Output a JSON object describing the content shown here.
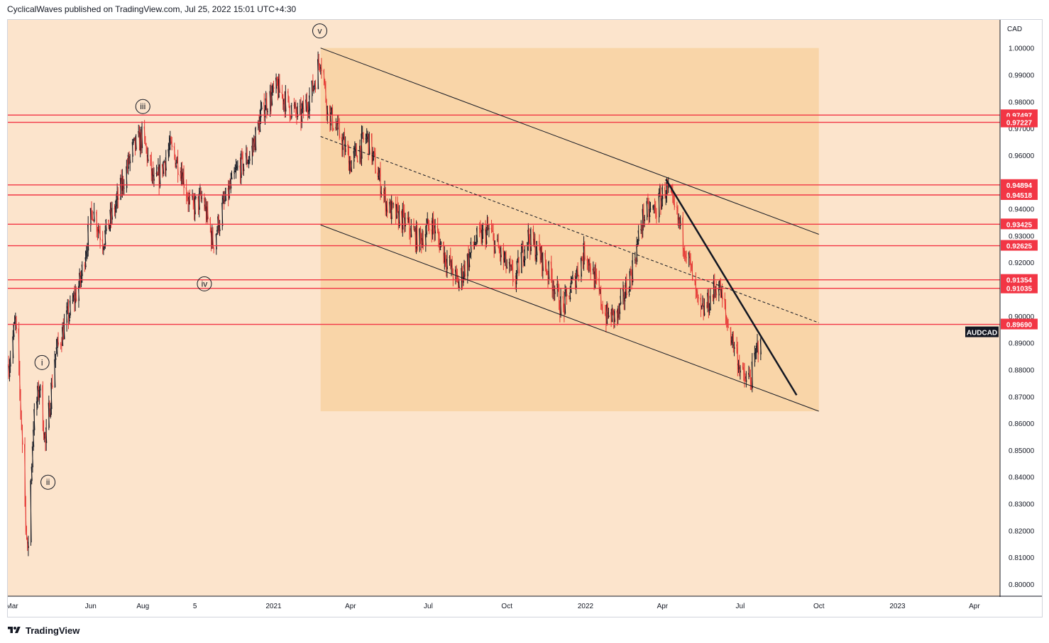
{
  "header": {
    "text": "CyclicalWaves published on TradingView.com, Jul 25, 2022 15:01 UTC+4:30"
  },
  "footer": {
    "brand": "TradingView",
    "logo_icon": "tradingview-logo-icon"
  },
  "colors": {
    "background": "#fce4cc",
    "channel_fill": "#f9d5a8",
    "up_candle": "#131722",
    "down_candle": "#e53935",
    "level_line": "#f23645",
    "level_label_bg": "#f23645",
    "trendline": "#131722",
    "symbol_tag_bg": "#131722"
  },
  "chart_data": {
    "type": "candlestick",
    "symbol": "AUDCAD",
    "currency": "CAD",
    "last_price": 0.8969,
    "y_axis": {
      "ylim": [
        0.7955,
        1.0105
      ],
      "ticks": [
        1.0,
        0.99,
        0.98,
        0.97,
        0.96,
        0.95,
        0.94,
        0.93,
        0.92,
        0.91,
        0.9,
        0.89,
        0.88,
        0.87,
        0.86,
        0.85,
        0.84,
        0.83,
        0.82,
        0.81,
        0.8
      ],
      "tick_labels": [
        "1.00000",
        "0.99000",
        "0.98000",
        "0.97000",
        "0.96000",
        "0.95000",
        "0.94000",
        "0.93000",
        "0.92000",
        "0.91000",
        "0.90000",
        "0.89000",
        "0.88000",
        "0.87000",
        "0.86000",
        "0.85000",
        "0.84000",
        "0.83000",
        "0.82000",
        "0.81000",
        "0.80000"
      ]
    },
    "x_axis": {
      "range": [
        "2020-02-25",
        "2023-05-01"
      ],
      "ticks": [
        {
          "date": "2020-03-01",
          "label": "Mar"
        },
        {
          "date": "2020-06-01",
          "label": "Jun"
        },
        {
          "date": "2020-08-01",
          "label": "Aug"
        },
        {
          "date": "2020-10-01",
          "label": "5"
        },
        {
          "date": "2021-01-01",
          "label": "2021"
        },
        {
          "date": "2021-04-01",
          "label": "Apr"
        },
        {
          "date": "2021-07-01",
          "label": "Jul"
        },
        {
          "date": "2021-10-01",
          "label": "Oct"
        },
        {
          "date": "2022-01-01",
          "label": "2022"
        },
        {
          "date": "2022-04-01",
          "label": "Apr"
        },
        {
          "date": "2022-07-01",
          "label": "Jul"
        },
        {
          "date": "2022-10-01",
          "label": "Oct"
        },
        {
          "date": "2023-01-01",
          "label": "2023"
        },
        {
          "date": "2023-04-01",
          "label": "Apr"
        }
      ]
    },
    "price_path": [
      {
        "date": "2020-02-26",
        "price": 0.882
      },
      {
        "date": "2020-03-05",
        "price": 0.898
      },
      {
        "date": "2020-03-12",
        "price": 0.86
      },
      {
        "date": "2020-03-19",
        "price": 0.81
      },
      {
        "date": "2020-03-26",
        "price": 0.86
      },
      {
        "date": "2020-04-02",
        "price": 0.874
      },
      {
        "date": "2020-04-09",
        "price": 0.852
      },
      {
        "date": "2020-04-20",
        "price": 0.885
      },
      {
        "date": "2020-05-01",
        "price": 0.896
      },
      {
        "date": "2020-05-20",
        "price": 0.913
      },
      {
        "date": "2020-06-03",
        "price": 0.94
      },
      {
        "date": "2020-06-15",
        "price": 0.928
      },
      {
        "date": "2020-07-01",
        "price": 0.942
      },
      {
        "date": "2020-07-20",
        "price": 0.962
      },
      {
        "date": "2020-08-01",
        "price": 0.967
      },
      {
        "date": "2020-08-15",
        "price": 0.948
      },
      {
        "date": "2020-09-01",
        "price": 0.963
      },
      {
        "date": "2020-09-15",
        "price": 0.955
      },
      {
        "date": "2020-09-26",
        "price": 0.94
      },
      {
        "date": "2020-10-10",
        "price": 0.944
      },
      {
        "date": "2020-10-22",
        "price": 0.927
      },
      {
        "date": "2020-11-02",
        "price": 0.94
      },
      {
        "date": "2020-11-20",
        "price": 0.955
      },
      {
        "date": "2020-12-05",
        "price": 0.96
      },
      {
        "date": "2020-12-20",
        "price": 0.978
      },
      {
        "date": "2021-01-05",
        "price": 0.985
      },
      {
        "date": "2021-01-20",
        "price": 0.978
      },
      {
        "date": "2021-02-01",
        "price": 0.974
      },
      {
        "date": "2021-02-15",
        "price": 0.984
      },
      {
        "date": "2021-02-25",
        "price": 0.997
      },
      {
        "date": "2021-03-05",
        "price": 0.977
      },
      {
        "date": "2021-03-20",
        "price": 0.967
      },
      {
        "date": "2021-04-01",
        "price": 0.957
      },
      {
        "date": "2021-04-20",
        "price": 0.967
      },
      {
        "date": "2021-05-01",
        "price": 0.955
      },
      {
        "date": "2021-05-15",
        "price": 0.94
      },
      {
        "date": "2021-06-01",
        "price": 0.936
      },
      {
        "date": "2021-06-20",
        "price": 0.928
      },
      {
        "date": "2021-07-05",
        "price": 0.935
      },
      {
        "date": "2021-07-20",
        "price": 0.923
      },
      {
        "date": "2021-08-05",
        "price": 0.912
      },
      {
        "date": "2021-08-25",
        "price": 0.928
      },
      {
        "date": "2021-09-10",
        "price": 0.932
      },
      {
        "date": "2021-09-25",
        "price": 0.922
      },
      {
        "date": "2021-10-10",
        "price": 0.913
      },
      {
        "date": "2021-10-25",
        "price": 0.93
      },
      {
        "date": "2021-11-10",
        "price": 0.922
      },
      {
        "date": "2021-11-25",
        "price": 0.912
      },
      {
        "date": "2021-12-05",
        "price": 0.902
      },
      {
        "date": "2021-12-20",
        "price": 0.915
      },
      {
        "date": "2022-01-01",
        "price": 0.925
      },
      {
        "date": "2022-01-10",
        "price": 0.915
      },
      {
        "date": "2022-01-25",
        "price": 0.9
      },
      {
        "date": "2022-02-08",
        "price": 0.9
      },
      {
        "date": "2022-02-25",
        "price": 0.918
      },
      {
        "date": "2022-03-10",
        "price": 0.938
      },
      {
        "date": "2022-03-25",
        "price": 0.94
      },
      {
        "date": "2022-04-05",
        "price": 0.948
      },
      {
        "date": "2022-04-20",
        "price": 0.935
      },
      {
        "date": "2022-05-01",
        "price": 0.922
      },
      {
        "date": "2022-05-15",
        "price": 0.9
      },
      {
        "date": "2022-05-25",
        "price": 0.905
      },
      {
        "date": "2022-06-05",
        "price": 0.913
      },
      {
        "date": "2022-06-15",
        "price": 0.898
      },
      {
        "date": "2022-06-25",
        "price": 0.888
      },
      {
        "date": "2022-07-05",
        "price": 0.876
      },
      {
        "date": "2022-07-14",
        "price": 0.877
      },
      {
        "date": "2022-07-25",
        "price": 0.8945
      }
    ],
    "horizontal_levels": [
      {
        "value": 0.97497,
        "label": "0.97497"
      },
      {
        "value": 0.97227,
        "label": "0.97227"
      },
      {
        "value": 0.94894,
        "label": "0.94894"
      },
      {
        "value": 0.94518,
        "label": "0.94518"
      },
      {
        "value": 0.93425,
        "label": "0.93425"
      },
      {
        "value": 0.92625,
        "label": "0.92625"
      },
      {
        "value": 0.91354,
        "label": "0.91354"
      },
      {
        "value": 0.91035,
        "label": "0.91035"
      },
      {
        "value": 0.8969,
        "label": "0.89690"
      }
    ],
    "channel": {
      "upper": [
        {
          "date": "2021-02-25",
          "price": 1.0
        },
        {
          "date": "2022-10-01",
          "price": 0.9305
        }
      ],
      "lower": [
        {
          "date": "2021-02-25",
          "price": 0.934
        },
        {
          "date": "2022-10-01",
          "price": 0.8645
        }
      ],
      "mid": [
        {
          "date": "2021-02-25",
          "price": 0.967
        },
        {
          "date": "2022-10-01",
          "price": 0.8975
        }
      ],
      "fill_start": "2021-02-25",
      "fill_end": "2022-10-01"
    },
    "trendline": [
      {
        "date": "2022-04-05",
        "price": 0.951
      },
      {
        "date": "2022-09-05",
        "price": 0.8705
      }
    ],
    "wave_labels": [
      {
        "label": "i",
        "date": "2020-04-05",
        "price": 0.8795,
        "position": "above"
      },
      {
        "label": "ii",
        "date": "2020-04-12",
        "price": 0.8412,
        "position": "below"
      },
      {
        "label": "iii",
        "date": "2020-08-01",
        "price": 0.975,
        "position": "above"
      },
      {
        "label": "iv",
        "date": "2020-10-12",
        "price": 0.9152,
        "position": "below"
      },
      {
        "label": "v",
        "date": "2021-02-24",
        "price": 1.0032,
        "position": "above"
      }
    ]
  }
}
